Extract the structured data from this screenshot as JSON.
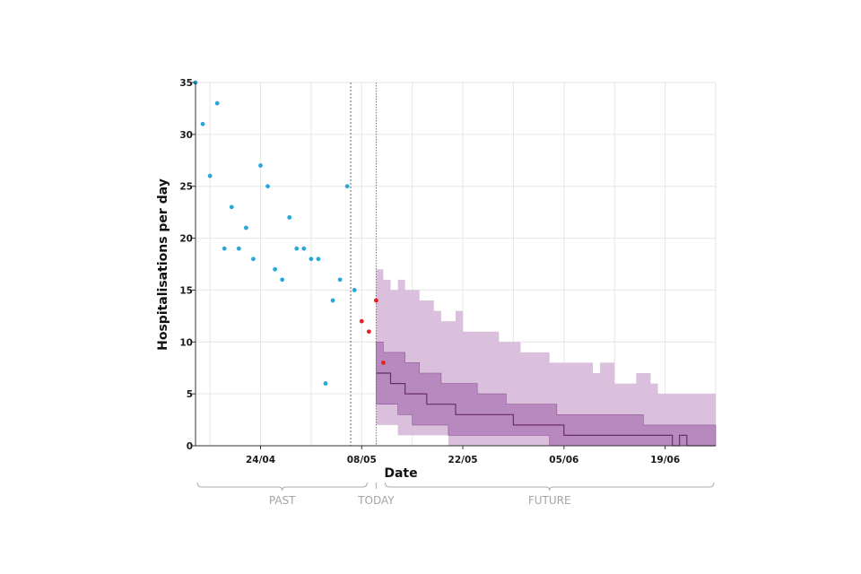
{
  "chart_data": {
    "type": "scatter",
    "ylabel": "Hospitalisations per day",
    "xlabel": "Date",
    "ylim": [
      0,
      35
    ],
    "xlim": [
      "2020-04-15",
      "2020-06-26"
    ],
    "yticks": [
      0,
      5,
      10,
      15,
      20,
      25,
      30,
      35
    ],
    "xticks": [
      {
        "date": "2020-04-24",
        "label": "24/04"
      },
      {
        "date": "2020-05-08",
        "label": "08/05"
      },
      {
        "date": "2020-05-22",
        "label": "22/05"
      },
      {
        "date": "2020-06-05",
        "label": "05/06"
      },
      {
        "date": "2020-06-19",
        "label": "19/06"
      }
    ],
    "grid": true,
    "today": "2020-05-10",
    "data_cutoff": "2020-05-04",
    "periods": [
      {
        "label": "PAST",
        "start": "2020-04-15",
        "end": "2020-05-09"
      },
      {
        "label": "TODAY",
        "start": "2020-05-10",
        "end": "2020-05-10"
      },
      {
        "label": "FUTURE",
        "start": "2020-05-11",
        "end": "2020-06-26"
      }
    ],
    "colors": {
      "observed": "#29a7d8",
      "recent": "#e8201f",
      "outer_band": "#d6b9d9",
      "inner_band": "#b17fb8",
      "median": "#6a2c70"
    },
    "series": [
      {
        "kind": "observed",
        "points": [
          [
            "2020-04-15",
            35
          ],
          [
            "2020-04-16",
            31
          ],
          [
            "2020-04-17",
            26
          ],
          [
            "2020-04-18",
            33
          ],
          [
            "2020-04-19",
            19
          ],
          [
            "2020-04-20",
            23
          ],
          [
            "2020-04-21",
            19
          ],
          [
            "2020-04-22",
            21
          ],
          [
            "2020-04-23",
            18
          ],
          [
            "2020-04-24",
            27
          ],
          [
            "2020-04-25",
            25
          ],
          [
            "2020-04-26",
            17
          ],
          [
            "2020-04-27",
            16
          ],
          [
            "2020-04-28",
            22
          ],
          [
            "2020-04-29",
            19
          ],
          [
            "2020-04-30",
            19
          ],
          [
            "2020-05-01",
            18
          ],
          [
            "2020-05-02",
            18
          ],
          [
            "2020-05-03",
            6
          ],
          [
            "2020-05-04",
            14
          ],
          [
            "2020-05-05",
            16
          ],
          [
            "2020-05-06",
            25
          ],
          [
            "2020-05-07",
            15
          ]
        ]
      },
      {
        "kind": "recent",
        "points": [
          [
            "2020-05-08",
            12
          ],
          [
            "2020-05-09",
            11
          ],
          [
            "2020-05-10",
            14
          ],
          [
            "2020-05-11",
            8
          ]
        ]
      },
      {
        "kind": "outer_band",
        "dates": [
          "2020-05-10",
          "2020-05-11",
          "2020-05-12",
          "2020-05-13",
          "2020-05-14",
          "2020-05-15",
          "2020-05-16",
          "2020-05-17",
          "2020-05-18",
          "2020-05-19",
          "2020-05-20",
          "2020-05-21",
          "2020-05-22",
          "2020-05-23",
          "2020-05-24",
          "2020-05-25",
          "2020-05-26",
          "2020-05-27",
          "2020-05-28",
          "2020-05-29",
          "2020-05-30",
          "2020-05-31",
          "2020-06-01",
          "2020-06-02",
          "2020-06-03",
          "2020-06-04",
          "2020-06-05",
          "2020-06-06",
          "2020-06-07",
          "2020-06-08",
          "2020-06-09",
          "2020-06-10",
          "2020-06-11",
          "2020-06-12",
          "2020-06-13",
          "2020-06-14",
          "2020-06-15",
          "2020-06-16",
          "2020-06-17",
          "2020-06-18",
          "2020-06-19",
          "2020-06-20",
          "2020-06-21",
          "2020-06-22",
          "2020-06-23",
          "2020-06-24",
          "2020-06-25"
        ],
        "upper": [
          17,
          16,
          15,
          16,
          15,
          15,
          14,
          14,
          13,
          12,
          12,
          13,
          11,
          11,
          11,
          11,
          11,
          10,
          10,
          10,
          9,
          9,
          9,
          9,
          8,
          8,
          8,
          8,
          8,
          8,
          7,
          8,
          8,
          6,
          6,
          6,
          7,
          7,
          6,
          5,
          5,
          5,
          5,
          5,
          5,
          5,
          5
        ],
        "lower": [
          2,
          2,
          2,
          1,
          1,
          1,
          1,
          1,
          1,
          1,
          0,
          0,
          0,
          0,
          0,
          0,
          0,
          0,
          0,
          0,
          0,
          0,
          0,
          0,
          0,
          0,
          0,
          0,
          0,
          0,
          0,
          0,
          0,
          0,
          0,
          0,
          0,
          0,
          0,
          0,
          0,
          0,
          0,
          0,
          0,
          0,
          0
        ]
      },
      {
        "kind": "inner_band",
        "dates": [
          "2020-05-10",
          "2020-05-11",
          "2020-05-12",
          "2020-05-13",
          "2020-05-14",
          "2020-05-15",
          "2020-05-16",
          "2020-05-17",
          "2020-05-18",
          "2020-05-19",
          "2020-05-20",
          "2020-05-21",
          "2020-05-22",
          "2020-05-23",
          "2020-05-24",
          "2020-05-25",
          "2020-05-26",
          "2020-05-27",
          "2020-05-28",
          "2020-05-29",
          "2020-05-30",
          "2020-05-31",
          "2020-06-01",
          "2020-06-02",
          "2020-06-03",
          "2020-06-04",
          "2020-06-05",
          "2020-06-06",
          "2020-06-07",
          "2020-06-08",
          "2020-06-09",
          "2020-06-10",
          "2020-06-11",
          "2020-06-12",
          "2020-06-13",
          "2020-06-14",
          "2020-06-15",
          "2020-06-16",
          "2020-06-17",
          "2020-06-18",
          "2020-06-19",
          "2020-06-20",
          "2020-06-21",
          "2020-06-22",
          "2020-06-23",
          "2020-06-24",
          "2020-06-25"
        ],
        "upper": [
          10,
          9,
          9,
          9,
          8,
          8,
          7,
          7,
          7,
          6,
          6,
          6,
          6,
          6,
          5,
          5,
          5,
          5,
          4,
          4,
          4,
          4,
          4,
          4,
          4,
          3,
          3,
          3,
          3,
          3,
          3,
          3,
          3,
          3,
          3,
          3,
          3,
          2,
          2,
          2,
          2,
          2,
          2,
          2,
          2,
          2,
          2
        ],
        "lower": [
          4,
          4,
          4,
          3,
          3,
          2,
          2,
          2,
          2,
          2,
          1,
          1,
          1,
          1,
          1,
          1,
          1,
          1,
          1,
          1,
          1,
          1,
          1,
          1,
          0,
          0,
          0,
          0,
          0,
          0,
          0,
          0,
          0,
          0,
          0,
          0,
          0,
          0,
          0,
          0,
          0,
          0,
          0,
          0,
          0,
          0,
          0
        ]
      },
      {
        "kind": "median",
        "dates": [
          "2020-05-10",
          "2020-05-11",
          "2020-05-12",
          "2020-05-13",
          "2020-05-14",
          "2020-05-15",
          "2020-05-16",
          "2020-05-17",
          "2020-05-18",
          "2020-05-19",
          "2020-05-20",
          "2020-05-21",
          "2020-05-22",
          "2020-05-23",
          "2020-05-24",
          "2020-05-25",
          "2020-05-26",
          "2020-05-27",
          "2020-05-28",
          "2020-05-29",
          "2020-05-30",
          "2020-05-31",
          "2020-06-01",
          "2020-06-02",
          "2020-06-03",
          "2020-06-04",
          "2020-06-05",
          "2020-06-06",
          "2020-06-07",
          "2020-06-08",
          "2020-06-09",
          "2020-06-10",
          "2020-06-11",
          "2020-06-12",
          "2020-06-13",
          "2020-06-14",
          "2020-06-15",
          "2020-06-16",
          "2020-06-17",
          "2020-06-18",
          "2020-06-19",
          "2020-06-20",
          "2020-06-21",
          "2020-06-22",
          "2020-06-23",
          "2020-06-24",
          "2020-06-25"
        ],
        "values": [
          7,
          7,
          6,
          6,
          5,
          5,
          5,
          4,
          4,
          4,
          4,
          3,
          3,
          3,
          3,
          3,
          3,
          3,
          3,
          2,
          2,
          2,
          2,
          2,
          2,
          2,
          1,
          1,
          1,
          1,
          1,
          1,
          1,
          1,
          1,
          1,
          1,
          1,
          1,
          1,
          1,
          0,
          1,
          0,
          0,
          0,
          0
        ]
      }
    ]
  }
}
